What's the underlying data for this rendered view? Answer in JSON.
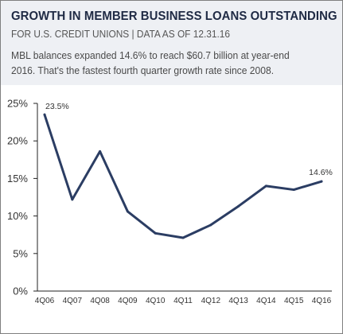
{
  "header": {
    "title": "GROWTH IN MEMBER BUSINESS LOANS OUTSTANDING",
    "subtitle": "FOR U.S. CREDIT UNIONS | DATA AS OF 12.31.16",
    "description_line1": "MBL balances expanded 14.6% to reach $60.7 billion at year-end",
    "description_line2": "2016. That's the fastest fourth quarter growth rate since 2008."
  },
  "colors": {
    "line": "#2b3d63",
    "header_background": "#eef0f4",
    "title": "#1f2a44"
  },
  "chart_data": {
    "type": "line",
    "categories": [
      "4Q06",
      "4Q07",
      "4Q08",
      "4Q09",
      "4Q10",
      "4Q11",
      "4Q12",
      "4Q13",
      "4Q14",
      "4Q15",
      "4Q16"
    ],
    "series": [
      {
        "values": [
          23.5,
          12.2,
          18.6,
          10.6,
          7.7,
          7.1,
          8.8,
          11.3,
          14.0,
          13.5,
          14.6
        ]
      }
    ],
    "yticks": [
      "0%",
      "5%",
      "10%",
      "15%",
      "20%",
      "25%"
    ],
    "ylim": [
      0,
      25
    ],
    "data_labels": [
      {
        "index": 0,
        "text": "23.5%"
      },
      {
        "index": 10,
        "text": "14.6%"
      }
    ],
    "grid": false,
    "legend": "none"
  }
}
